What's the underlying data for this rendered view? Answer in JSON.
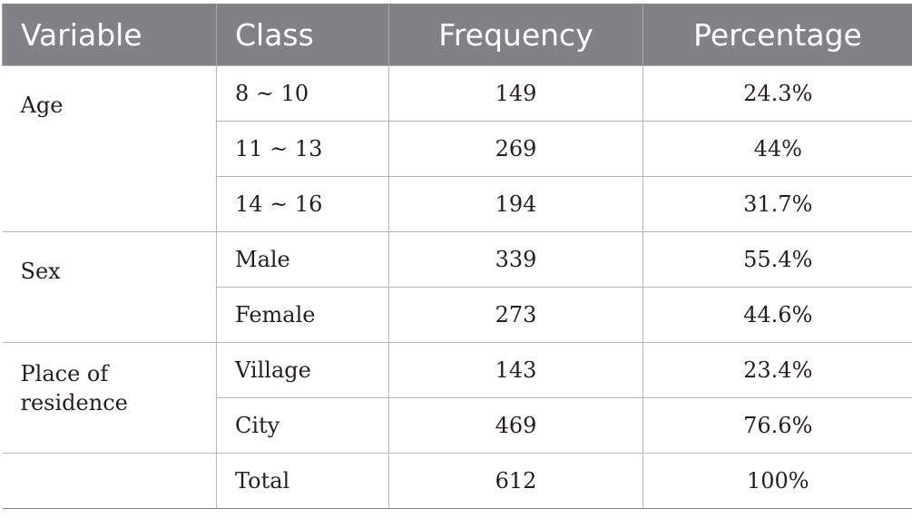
{
  "table": {
    "headers": [
      "Variable",
      "Class",
      "Frequency",
      "Percentage"
    ],
    "groups": [
      {
        "variable": "Age",
        "rows": [
          {
            "class": "8 ~ 10",
            "frequency": "149",
            "percentage": "24.3%"
          },
          {
            "class": "11 ~ 13",
            "frequency": "269",
            "percentage": "44%"
          },
          {
            "class": "14 ~ 16",
            "frequency": "194",
            "percentage": "31.7%"
          }
        ]
      },
      {
        "variable": "Sex",
        "rows": [
          {
            "class": "Male",
            "frequency": "339",
            "percentage": "55.4%"
          },
          {
            "class": "Female",
            "frequency": "273",
            "percentage": "44.6%"
          }
        ]
      },
      {
        "variable": "Place of residence",
        "variable_lines": [
          "Place of",
          "residence"
        ],
        "rows": [
          {
            "class": "Village",
            "frequency": "143",
            "percentage": "23.4%"
          },
          {
            "class": "City",
            "frequency": "469",
            "percentage": "76.6%"
          }
        ]
      },
      {
        "variable": "",
        "rows": [
          {
            "class": "Total",
            "frequency": "612",
            "percentage": "100%"
          }
        ]
      }
    ]
  },
  "colors": {
    "header_background": "#808285",
    "header_text": "#ffffff",
    "body_text": "#231f20",
    "grid_line": "#b5b5b5"
  }
}
